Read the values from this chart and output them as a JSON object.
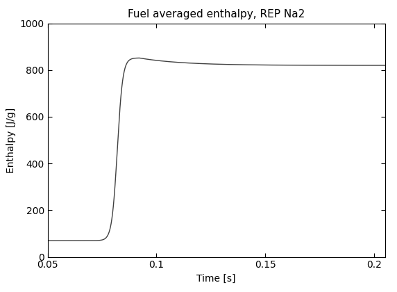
{
  "title": "Fuel averaged enthalpy, REP Na2",
  "xlabel": "Time [s]",
  "ylabel": "Enthalpy [J/g]",
  "xlim": [
    0.05,
    0.205
  ],
  "ylim": [
    0,
    1000
  ],
  "xticks": [
    0.05,
    0.1,
    0.15,
    0.2
  ],
  "yticks": [
    0,
    200,
    400,
    600,
    800,
    1000
  ],
  "line_color": "#404040",
  "line_width": 1.0,
  "background_color": "#ffffff",
  "title_fontsize": 11,
  "label_fontsize": 10,
  "tick_fontsize": 10,
  "curve": {
    "t_start": 0.05,
    "t_end": 0.205,
    "y_initial": 70,
    "y_peak": 852,
    "y_final": 820,
    "t_rise_start": 0.072,
    "t_peak": 0.092,
    "t_decay": 50.0,
    "sigmoid_steepness": 16
  }
}
